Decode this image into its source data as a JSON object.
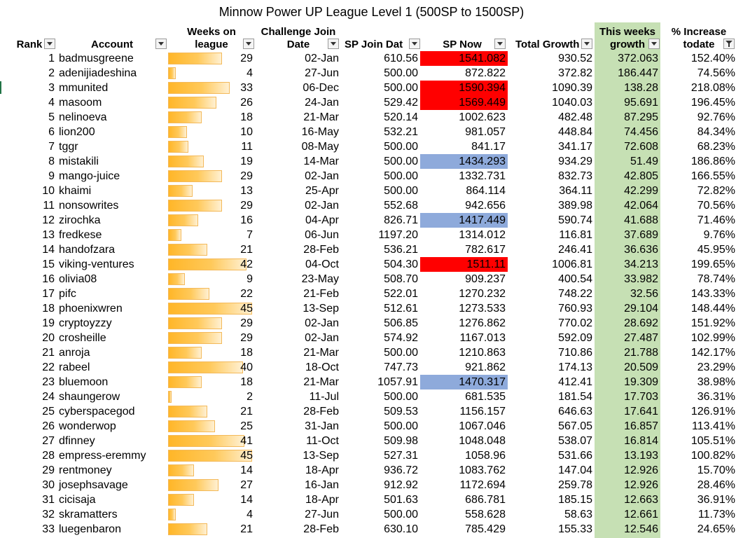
{
  "title": "Minnow Power UP League Level 1 (500SP to 1500SP)",
  "colors": {
    "highlight_red": "#ff0000",
    "highlight_blue": "#8eaadb",
    "growth_column": "#c6e0b4",
    "bar_fill": "#ffb628"
  },
  "headers": {
    "rank": "Rank",
    "account": "Account",
    "weeks_line1": "Weeks on",
    "weeks_line2": "league",
    "join_line1": "Challenge Join",
    "join_line2": "Date",
    "sp_join": "SP Join Dat",
    "sp_now": "SP Now",
    "total_growth": "Total Growth",
    "weeks_growth_line1": "This weeks",
    "weeks_growth_line2": "growth",
    "pct_line1": "% Increase",
    "pct_line2": "todate"
  },
  "weeks_max": 45,
  "rows": [
    {
      "rank": "1",
      "account": "badmusgreene",
      "weeks": 29,
      "join": "02-Jan",
      "sp_join": "610.56",
      "sp_now": "1541.082",
      "sp_hl": "red",
      "total": "930.52",
      "week_growth": "372.063",
      "pct": "152.40%"
    },
    {
      "rank": "2",
      "account": "adenijiadeshina",
      "weeks": 4,
      "join": "27-Jun",
      "sp_join": "500.00",
      "sp_now": "872.822",
      "sp_hl": "",
      "total": "372.82",
      "week_growth": "186.447",
      "pct": "74.56%"
    },
    {
      "rank": "3",
      "account": "mmunited",
      "weeks": 33,
      "join": "06-Dec",
      "sp_join": "500.00",
      "sp_now": "1590.394",
      "sp_hl": "red",
      "total": "1090.39",
      "week_growth": "138.28",
      "pct": "218.08%"
    },
    {
      "rank": "4",
      "account": "masoom",
      "weeks": 26,
      "join": "24-Jan",
      "sp_join": "529.42",
      "sp_now": "1569.449",
      "sp_hl": "red",
      "total": "1040.03",
      "week_growth": "95.691",
      "pct": "196.45%"
    },
    {
      "rank": "5",
      "account": "nelinoeva",
      "weeks": 18,
      "join": "21-Mar",
      "sp_join": "520.14",
      "sp_now": "1002.623",
      "sp_hl": "",
      "total": "482.48",
      "week_growth": "87.295",
      "pct": "92.76%"
    },
    {
      "rank": "6",
      "account": "lion200",
      "weeks": 10,
      "join": "16-May",
      "sp_join": "532.21",
      "sp_now": "981.057",
      "sp_hl": "",
      "total": "448.84",
      "week_growth": "74.456",
      "pct": "84.34%"
    },
    {
      "rank": "7",
      "account": "tggr",
      "weeks": 11,
      "join": "08-May",
      "sp_join": "500.00",
      "sp_now": "841.17",
      "sp_hl": "",
      "total": "341.17",
      "week_growth": "72.608",
      "pct": "68.23%"
    },
    {
      "rank": "8",
      "account": "mistakili",
      "weeks": 19,
      "join": "14-Mar",
      "sp_join": "500.00",
      "sp_now": "1434.293",
      "sp_hl": "blue",
      "total": "934.29",
      "week_growth": "51.49",
      "pct": "186.86%"
    },
    {
      "rank": "9",
      "account": "mango-juice",
      "weeks": 29,
      "join": "02-Jan",
      "sp_join": "500.00",
      "sp_now": "1332.731",
      "sp_hl": "",
      "total": "832.73",
      "week_growth": "42.805",
      "pct": "166.55%"
    },
    {
      "rank": "10",
      "account": "khaimi",
      "weeks": 13,
      "join": "25-Apr",
      "sp_join": "500.00",
      "sp_now": "864.114",
      "sp_hl": "",
      "total": "364.11",
      "week_growth": "42.299",
      "pct": "72.82%"
    },
    {
      "rank": "11",
      "account": "nonsowrites",
      "weeks": 29,
      "join": "02-Jan",
      "sp_join": "552.68",
      "sp_now": "942.656",
      "sp_hl": "",
      "total": "389.98",
      "week_growth": "42.064",
      "pct": "70.56%"
    },
    {
      "rank": "12",
      "account": "zirochka",
      "weeks": 16,
      "join": "04-Apr",
      "sp_join": "826.71",
      "sp_now": "1417.449",
      "sp_hl": "blue",
      "total": "590.74",
      "week_growth": "41.688",
      "pct": "71.46%"
    },
    {
      "rank": "13",
      "account": "fredkese",
      "weeks": 7,
      "join": "06-Jun",
      "sp_join": "1197.20",
      "sp_now": "1314.012",
      "sp_hl": "",
      "total": "116.81",
      "week_growth": "37.689",
      "pct": "9.76%"
    },
    {
      "rank": "14",
      "account": "handofzara",
      "weeks": 21,
      "join": "28-Feb",
      "sp_join": "536.21",
      "sp_now": "782.617",
      "sp_hl": "",
      "total": "246.41",
      "week_growth": "36.636",
      "pct": "45.95%"
    },
    {
      "rank": "15",
      "account": "viking-ventures",
      "weeks": 42,
      "join": "04-Oct",
      "sp_join": "504.30",
      "sp_now": "1511.11",
      "sp_hl": "red",
      "total": "1006.81",
      "week_growth": "34.213",
      "pct": "199.65%"
    },
    {
      "rank": "16",
      "account": "olivia08",
      "weeks": 9,
      "join": "23-May",
      "sp_join": "508.70",
      "sp_now": "909.237",
      "sp_hl": "",
      "total": "400.54",
      "week_growth": "33.982",
      "pct": "78.74%"
    },
    {
      "rank": "17",
      "account": "pifc",
      "weeks": 22,
      "join": "21-Feb",
      "sp_join": "522.01",
      "sp_now": "1270.232",
      "sp_hl": "",
      "total": "748.22",
      "week_growth": "32.56",
      "pct": "143.33%"
    },
    {
      "rank": "18",
      "account": "phoenixwren",
      "weeks": 45,
      "join": "13-Sep",
      "sp_join": "512.61",
      "sp_now": "1273.533",
      "sp_hl": "",
      "total": "760.93",
      "week_growth": "29.104",
      "pct": "148.44%"
    },
    {
      "rank": "19",
      "account": "cryptoyzzy",
      "weeks": 29,
      "join": "02-Jan",
      "sp_join": "506.85",
      "sp_now": "1276.862",
      "sp_hl": "",
      "total": "770.02",
      "week_growth": "28.692",
      "pct": "151.92%"
    },
    {
      "rank": "20",
      "account": "crosheille",
      "weeks": 29,
      "join": "02-Jan",
      "sp_join": "574.92",
      "sp_now": "1167.013",
      "sp_hl": "",
      "total": "592.09",
      "week_growth": "27.487",
      "pct": "102.99%"
    },
    {
      "rank": "21",
      "account": "anroja",
      "weeks": 18,
      "join": "21-Mar",
      "sp_join": "500.00",
      "sp_now": "1210.863",
      "sp_hl": "",
      "total": "710.86",
      "week_growth": "21.788",
      "pct": "142.17%"
    },
    {
      "rank": "22",
      "account": "rabeel",
      "weeks": 40,
      "join": "18-Oct",
      "sp_join": "747.73",
      "sp_now": "921.862",
      "sp_hl": "",
      "total": "174.13",
      "week_growth": "20.509",
      "pct": "23.29%"
    },
    {
      "rank": "23",
      "account": "bluemoon",
      "weeks": 18,
      "join": "21-Mar",
      "sp_join": "1057.91",
      "sp_now": "1470.317",
      "sp_hl": "blue",
      "total": "412.41",
      "week_growth": "19.309",
      "pct": "38.98%"
    },
    {
      "rank": "24",
      "account": "shaungerow",
      "weeks": 2,
      "join": "11-Jul",
      "sp_join": "500.00",
      "sp_now": "681.535",
      "sp_hl": "",
      "total": "181.54",
      "week_growth": "17.703",
      "pct": "36.31%"
    },
    {
      "rank": "25",
      "account": "cyberspacegod",
      "weeks": 21,
      "join": "28-Feb",
      "sp_join": "509.53",
      "sp_now": "1156.157",
      "sp_hl": "",
      "total": "646.63",
      "week_growth": "17.641",
      "pct": "126.91%"
    },
    {
      "rank": "26",
      "account": "wonderwop",
      "weeks": 25,
      "join": "31-Jan",
      "sp_join": "500.00",
      "sp_now": "1067.046",
      "sp_hl": "",
      "total": "567.05",
      "week_growth": "16.857",
      "pct": "113.41%"
    },
    {
      "rank": "27",
      "account": "dfinney",
      "weeks": 41,
      "join": "11-Oct",
      "sp_join": "509.98",
      "sp_now": "1048.048",
      "sp_hl": "",
      "total": "538.07",
      "week_growth": "16.814",
      "pct": "105.51%"
    },
    {
      "rank": "28",
      "account": "empress-eremmy",
      "weeks": 45,
      "join": "13-Sep",
      "sp_join": "527.31",
      "sp_now": "1058.96",
      "sp_hl": "",
      "total": "531.66",
      "week_growth": "13.193",
      "pct": "100.82%"
    },
    {
      "rank": "29",
      "account": "rentmoney",
      "weeks": 14,
      "join": "18-Apr",
      "sp_join": "936.72",
      "sp_now": "1083.762",
      "sp_hl": "",
      "total": "147.04",
      "week_growth": "12.926",
      "pct": "15.70%"
    },
    {
      "rank": "30",
      "account": "josephsavage",
      "weeks": 27,
      "join": "16-Jan",
      "sp_join": "912.92",
      "sp_now": "1172.694",
      "sp_hl": "",
      "total": "259.78",
      "week_growth": "12.926",
      "pct": "28.46%"
    },
    {
      "rank": "31",
      "account": "cicisaja",
      "weeks": 14,
      "join": "18-Apr",
      "sp_join": "501.63",
      "sp_now": "686.781",
      "sp_hl": "",
      "total": "185.15",
      "week_growth": "12.663",
      "pct": "36.91%"
    },
    {
      "rank": "32",
      "account": "skramatters",
      "weeks": 4,
      "join": "27-Jun",
      "sp_join": "500.00",
      "sp_now": "558.628",
      "sp_hl": "",
      "total": "58.63",
      "week_growth": "12.661",
      "pct": "11.73%"
    },
    {
      "rank": "33",
      "account": "luegenbaron",
      "weeks": 21,
      "join": "28-Feb",
      "sp_join": "630.10",
      "sp_now": "785.429",
      "sp_hl": "",
      "total": "155.33",
      "week_growth": "12.546",
      "pct": "24.65%"
    }
  ]
}
